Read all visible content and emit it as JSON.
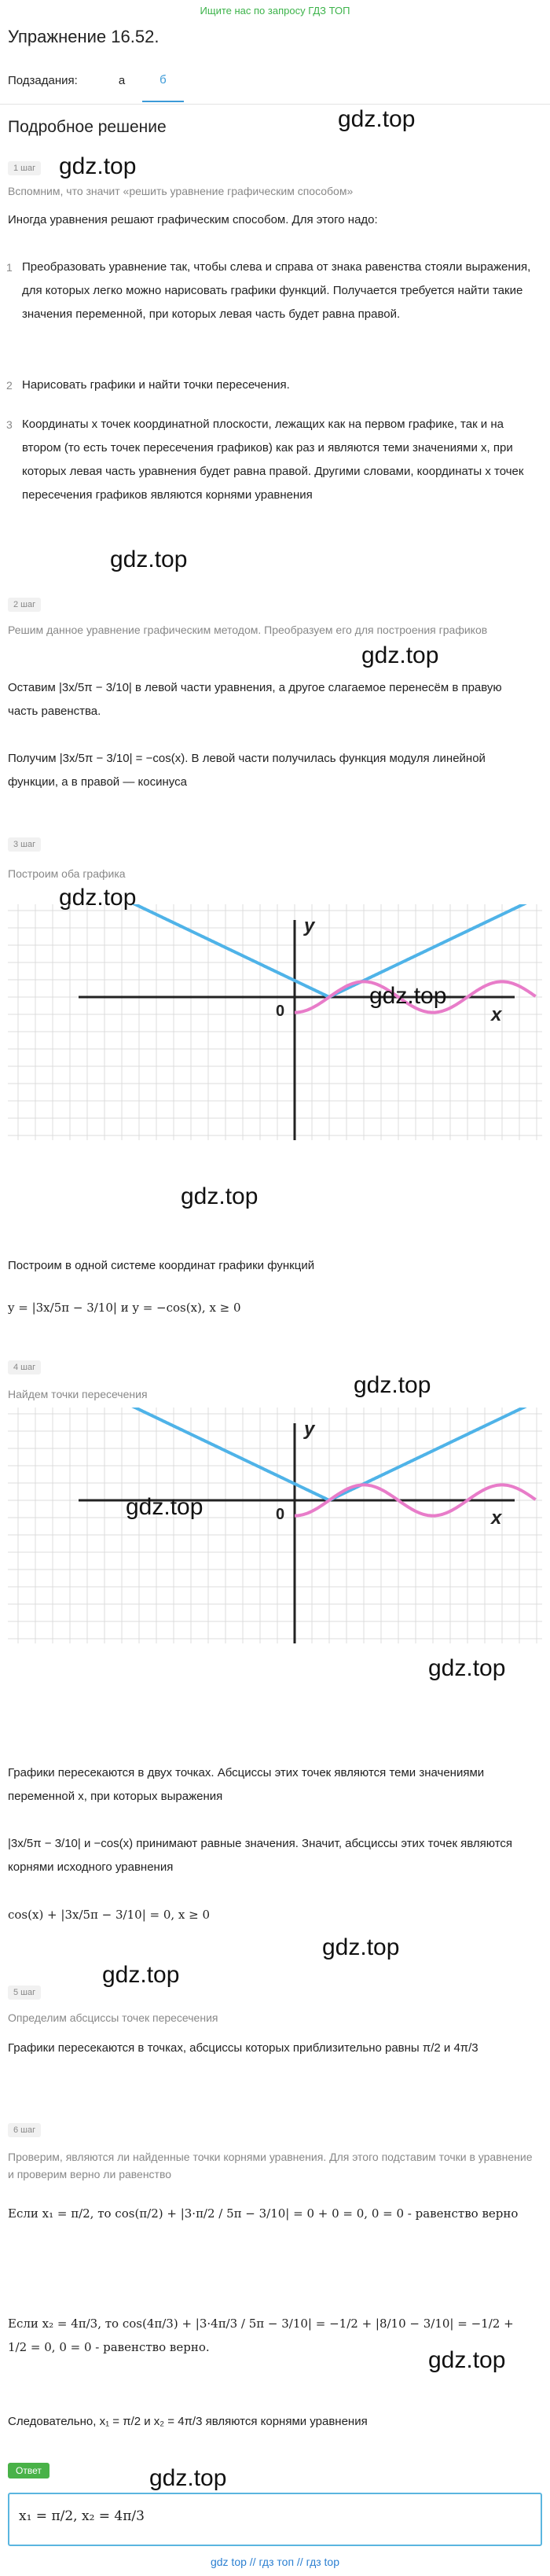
{
  "top_link": "Ищите нас по запросу ГДЗ ТОП",
  "title": "Упражнение 16.52.",
  "subtasks": {
    "label": "Подзадания:",
    "tabs": [
      "а",
      "б"
    ],
    "active": "б"
  },
  "section_title": "Подробное решение",
  "watermark": "gdz.top",
  "steps": {
    "s1": "1 шаг",
    "s2": "2 шаг",
    "s3": "3 шаг",
    "s4": "4 шаг",
    "s5": "5 шаг",
    "s6": "6 шаг"
  },
  "step1": {
    "note": "Вспомним, что значит «решить уравнение графическим способом»",
    "intro": "Иногда уравнения решают графическим способом. Для этого надо:",
    "items": [
      "Преобразовать уравнение так, чтобы слева и справа от знака равенства стояли выражения, для которых легко можно нарисовать графики функций. Получается требуется найти такие значения переменной, при которых левая часть будет равна правой.",
      "Нарисовать графики и найти точки пересечения.",
      "Координаты x точек координатной плоскости, лежащих как на первом графике, так и на втором (то есть точек пересечения графиков) как раз и являются теми значениями x, при которых левая часть уравнения будет равна правой. Другими словами, координаты x точек пересечения графиков являются корнями уравнения"
    ]
  },
  "step2": {
    "note": "Решим данное уравнение графическим методом. Преобразуем его для построения графиков",
    "line1": "Оставим |3x/5π − 3/10| в левой части уравнения, а другое слагаемое перенесём в правую часть равенства.",
    "line2": "Получим |3x/5π − 3/10| = −cos(x). В левой части получилась функция модуля линейной функции, а в правой — косинуса"
  },
  "step3": {
    "note": "Построим оба графика",
    "caption": "Построим в одной системе координат графики функций",
    "formula": "y = |3x/5π − 3/10| и y = −cos(x), x ≥ 0"
  },
  "step4": {
    "note": "Найдем точки пересечения",
    "text1": "Графики пересекаются в двух точках. Абсциссы этих точек являются теми значениями переменной x, при которых выражения",
    "text2": "|3x/5π − 3/10| и −cos(x) принимают равные значения. Значит, абсциссы этих точек являются корнями исходного уравнения",
    "formula": "cos(x) + |3x/5π − 3/10| = 0, x ≥ 0"
  },
  "step5": {
    "note": "Определим абсциссы точек пересечения",
    "text": "Графики пересекаются в точках, абсциссы которых приблизительно равны π/2 и 4π/3"
  },
  "step6": {
    "note": "Проверим, являются ли найденные точки корнями уравнения. Для этого подставим точки в уравнение и проверим верно ли равенство",
    "check1": "Если x₁ = π/2, то cos(π/2) + |3·π/2 / 5π − 3/10| = 0 + 0 = 0,  0 = 0 - равенство верно",
    "check2": "Если x₂ = 4π/3, то cos(4π/3) + |3·4π/3 / 5π − 3/10| = −1/2 + |8/10 − 3/10| = −1/2 + 1/2 = 0,  0 = 0 - равенство верно.",
    "conclusion": "Следовательно, x₁ = π/2 и x₂ = 4π/3 являются корнями уравнения"
  },
  "answer": {
    "label": "Ответ",
    "text": "x₁ = π/2, x₂ = 4π/3"
  },
  "graph": {
    "y_label": "y",
    "x_label": "x",
    "origin": "0"
  },
  "footer": "gdz top // гдз топ // гдз top",
  "colors": {
    "accent": "#3c9ad8",
    "line": "#4fb3e8",
    "cos": "#e87cc9",
    "green": "#49b248"
  }
}
